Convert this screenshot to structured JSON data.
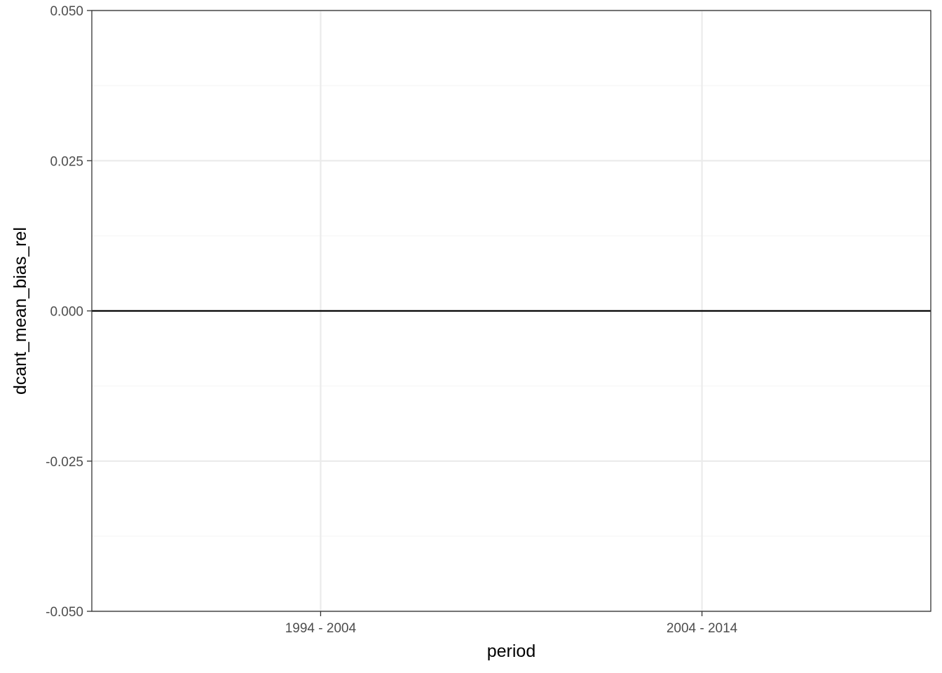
{
  "chart_data": {
    "type": "line",
    "title": "",
    "xlabel": "period",
    "ylabel": "dcant_mean_bias_rel",
    "categories": [
      "1994 - 2004",
      "2004 - 2014"
    ],
    "ylim": [
      -0.05,
      0.05
    ],
    "yticks": [
      -0.05,
      -0.025,
      0,
      0.025,
      0.05
    ],
    "ytick_labels": [
      "-0.050",
      "-0.025",
      "0.000",
      "0.025",
      "0.050"
    ],
    "yminor": [
      -0.0375,
      -0.0125,
      0.0125,
      0.0375
    ],
    "reference_line": {
      "y": 0,
      "color": "#000000"
    },
    "series": [],
    "grid": true,
    "legend": "none",
    "theme": "bw",
    "colors": {
      "panel_border": "#333333",
      "grid_major": "#ebebeb",
      "grid_minor": "#f4f4f4",
      "tick_text": "#4d4d4d"
    }
  }
}
